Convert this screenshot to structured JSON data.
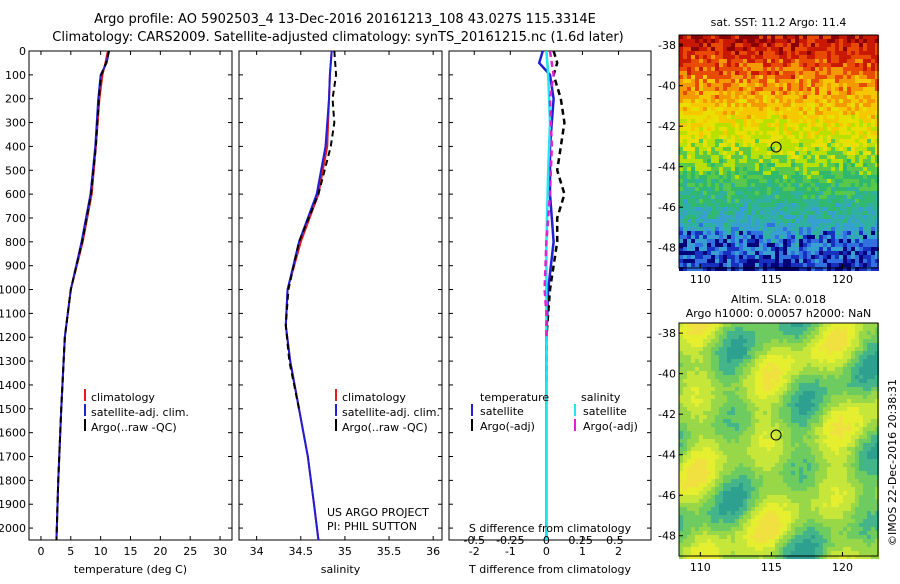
{
  "header": {
    "line1": "Argo profile: AO 5902503_4 13-Dec-2016 20161213_108 43.027S 115.3314E",
    "line2": "Climatology: CARS2009. Satellite-adjusted climatology: synTS_20161215.nc (1.6d later)"
  },
  "depth_ticks": [
    0,
    100,
    200,
    300,
    400,
    500,
    600,
    700,
    800,
    900,
    1000,
    1100,
    1200,
    1300,
    1400,
    1500,
    1600,
    1700,
    1800,
    1900,
    2000
  ],
  "chart_data": [
    {
      "type": "line",
      "xlabel": "temperature (deg C)",
      "xlim": [
        -2,
        32
      ],
      "xticks": [
        0,
        5,
        10,
        15,
        20,
        25,
        30
      ],
      "ylim": [
        0,
        2050
      ],
      "y_reversed": true,
      "colors": {
        "climatology": "#e41a1c",
        "satellite": "#1f1fd6",
        "argo": "#000000"
      },
      "legend": [
        "climatology",
        "satellite-adj. clim.",
        "Argo(..raw -QC)"
      ],
      "series": [
        {
          "name": "climatology",
          "depth": [
            0,
            50,
            100,
            200,
            400,
            600,
            800,
            1000,
            1200,
            1500,
            1800,
            2050
          ],
          "values": [
            11.2,
            10.8,
            10.3,
            9.8,
            9.2,
            8.5,
            7.0,
            5.0,
            4.0,
            3.4,
            2.9,
            2.6
          ]
        },
        {
          "name": "satellite-adj. clim.",
          "depth": [
            0,
            50,
            100,
            200,
            400,
            600,
            800,
            1000,
            1200,
            1500,
            1800,
            2050
          ],
          "values": [
            11.4,
            11.0,
            10.0,
            9.6,
            9.1,
            8.3,
            6.8,
            5.0,
            4.0,
            3.4,
            2.9,
            2.6
          ]
        },
        {
          "name": "Argo(..raw -QC)",
          "depth": [
            0,
            50,
            100,
            200,
            400,
            600,
            800,
            1000,
            1200,
            1500,
            1800,
            2050
          ],
          "values": [
            11.4,
            10.9,
            10.1,
            9.7,
            9.2,
            8.4,
            6.9,
            5.0,
            4.0,
            3.4,
            2.9,
            2.6
          ]
        }
      ]
    },
    {
      "type": "line",
      "xlabel": "salinity",
      "xlim": [
        33.8,
        36.1
      ],
      "xticks": [
        34,
        34.5,
        35,
        35.5,
        36
      ],
      "ylim": [
        0,
        2050
      ],
      "y_reversed": true,
      "legend": [
        "climatology",
        "satellite-adj. clim.",
        "Argo(..raw -QC)"
      ],
      "annotation": [
        "US ARGO PROJECT",
        "PI: PHIL SUTTON"
      ],
      "series": [
        {
          "name": "climatology",
          "depth": [
            0,
            100,
            200,
            400,
            600,
            800,
            1000,
            1150,
            1300,
            1500,
            1700,
            1900,
            2050
          ],
          "values": [
            34.85,
            34.83,
            34.82,
            34.8,
            34.7,
            34.5,
            34.35,
            34.33,
            34.38,
            34.48,
            34.58,
            34.65,
            34.7
          ]
        },
        {
          "name": "satellite-adj. clim.",
          "depth": [
            0,
            100,
            200,
            400,
            600,
            800,
            1000,
            1150,
            1300,
            1500,
            1700,
            1900,
            2050
          ],
          "values": [
            34.85,
            34.83,
            34.82,
            34.78,
            34.68,
            34.48,
            34.35,
            34.33,
            34.38,
            34.48,
            34.58,
            34.65,
            34.7
          ]
        },
        {
          "name": "Argo(..raw -QC)",
          "depth": [
            0,
            100,
            200,
            300,
            400,
            600,
            800,
            1000,
            1150,
            1300,
            1500
          ],
          "values": [
            34.88,
            34.9,
            34.86,
            34.88,
            34.84,
            34.7,
            34.48,
            34.36,
            34.33,
            34.37,
            34.48
          ]
        }
      ]
    },
    {
      "type": "line",
      "xlabel": "T difference from climatology",
      "xlabel2": "S difference from climatology",
      "xlim": [
        -2.7,
        2.9
      ],
      "xticks": [
        -2,
        -1,
        0,
        1,
        2
      ],
      "s_ticks": [
        {
          "x": -2,
          "label": "-0.5"
        },
        {
          "x": -1,
          "label": "-0.25"
        },
        {
          "x": 0,
          "label": "0"
        },
        {
          "x": 0.95,
          "label": "0.25"
        },
        {
          "x": 1.9,
          "label": "0.5"
        }
      ],
      "ylim": [
        0,
        2050
      ],
      "y_reversed": true,
      "legend_headers": [
        "temperature",
        "salinity"
      ],
      "legend": [
        "satellite",
        "Argo(-adj)",
        "satellite",
        "Argo(-adj)"
      ],
      "colors": {
        "t_sat": "#1f1fd6",
        "t_argo": "#000000",
        "s_sat": "#22e6f0",
        "s_argo": "#e020d0"
      },
      "series": [
        {
          "name": "T satellite",
          "depth": [
            0,
            50,
            100,
            200,
            400,
            600,
            800,
            1000,
            1200,
            1400,
            2050
          ],
          "values": [
            -0.1,
            -0.2,
            0.1,
            0.2,
            0.1,
            0.1,
            0.2,
            0.05,
            0.0,
            0.0,
            0.0
          ]
        },
        {
          "name": "T Argo(-adj)",
          "depth": [
            0,
            50,
            100,
            200,
            300,
            400,
            500,
            600,
            700,
            800,
            900,
            1000,
            1200,
            1400
          ],
          "values": [
            0.2,
            0.3,
            0.2,
            0.4,
            0.5,
            0.4,
            0.3,
            0.5,
            0.3,
            0.3,
            0.2,
            0.1,
            0.0,
            0.0
          ]
        },
        {
          "name": "S satellite",
          "depth": [
            0,
            100,
            300,
            500,
            800,
            1000,
            1500,
            2050
          ],
          "values": [
            0.0,
            0.05,
            0.1,
            0.05,
            0.0,
            0.0,
            0.0,
            0.0
          ]
        },
        {
          "name": "S Argo(-adj)",
          "depth": [
            0,
            100,
            200,
            400,
            600,
            800,
            1000,
            1100,
            1200
          ],
          "values": [
            0.1,
            0.2,
            0.1,
            0.15,
            0.1,
            0.0,
            -0.05,
            0.0,
            0.0
          ]
        }
      ]
    },
    {
      "type": "heatmap",
      "title": "sat. SST: 11.2  Argo: 11.4",
      "xlim": [
        108.5,
        122.5
      ],
      "ylim": [
        -49,
        -37.5
      ],
      "xticks": [
        110,
        115,
        120
      ],
      "yticks": [
        -38,
        -40,
        -42,
        -44,
        -46,
        -48
      ],
      "marker": {
        "lon": 115.33,
        "lat": -43.03
      }
    },
    {
      "type": "heatmap",
      "title": "Altim. SLA: 0.018",
      "subtitle": "Argo h1000: 0.00057  h2000: NaN",
      "xlim": [
        108.5,
        122.5
      ],
      "ylim": [
        -49,
        -37.5
      ],
      "xticks": [
        110,
        115,
        120
      ],
      "yticks": [
        -38,
        -40,
        -42,
        -44,
        -46,
        -48
      ],
      "marker": {
        "lon": 115.33,
        "lat": -43.03
      }
    }
  ],
  "side_label": "©IMOS 22-Dec-2016 20:38:31"
}
